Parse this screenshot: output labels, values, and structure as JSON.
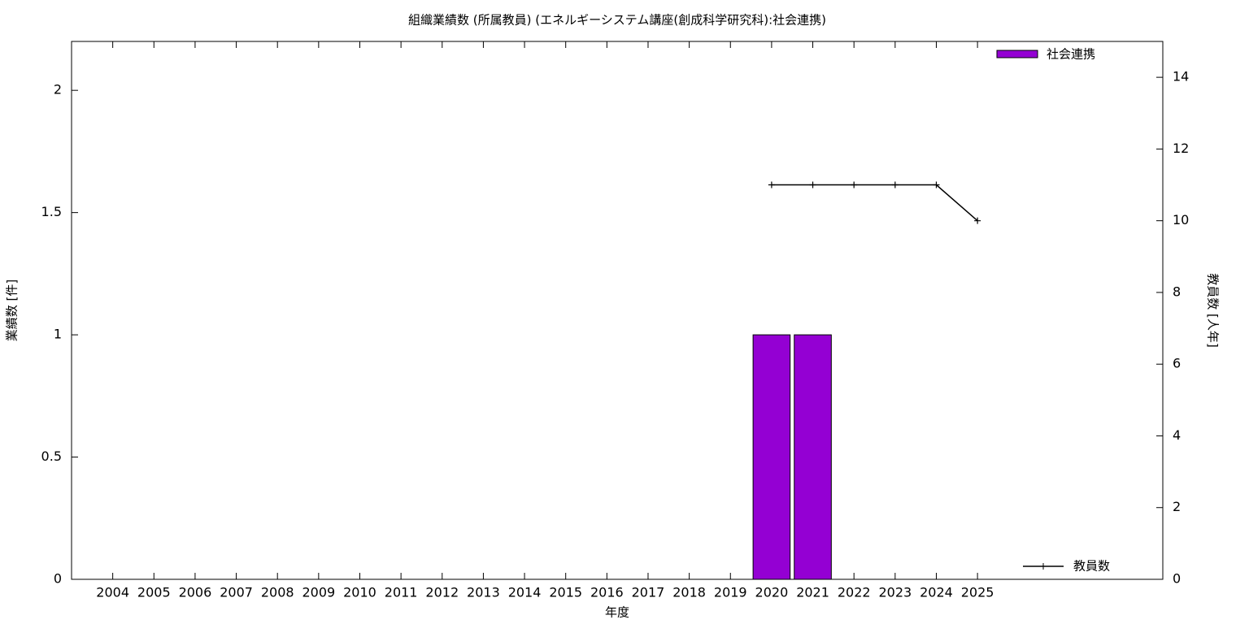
{
  "chart_data": {
    "type": "bar",
    "title": "組織業績数 (所属教員) (エネルギーシステム講座(創成科学研究科):社会連携)",
    "x_label": "年度",
    "y_label": "業績数 [件]",
    "y2_label": "教員数 [人年]",
    "x": [
      2004,
      2005,
      2006,
      2007,
      2008,
      2009,
      2010,
      2011,
      2012,
      2013,
      2014,
      2015,
      2016,
      2017,
      2018,
      2019,
      2020,
      2021,
      2022,
      2023,
      2024,
      2025
    ],
    "xlim": [
      2003,
      2029.5
    ],
    "ylim": [
      0,
      2.2
    ],
    "yticks": [
      0,
      0.5,
      1,
      1.5,
      2
    ],
    "y2lim": [
      0,
      15
    ],
    "y2ticks": [
      0,
      2,
      4,
      6,
      8,
      10,
      12,
      14
    ],
    "series": [
      {
        "name": "社会連携",
        "type": "bar",
        "color": "#9400d3",
        "values": [
          0,
          0,
          0,
          0,
          0,
          0,
          0,
          0,
          0,
          0,
          0,
          0,
          0,
          0,
          0,
          0,
          1,
          1,
          0,
          0,
          0,
          0
        ]
      },
      {
        "name": "教員数",
        "type": "line",
        "axis": "y2",
        "color": "#000000",
        "values": [
          null,
          null,
          null,
          null,
          null,
          null,
          null,
          null,
          null,
          null,
          null,
          null,
          null,
          null,
          null,
          null,
          11,
          11,
          11,
          11,
          11,
          10
        ]
      }
    ]
  }
}
